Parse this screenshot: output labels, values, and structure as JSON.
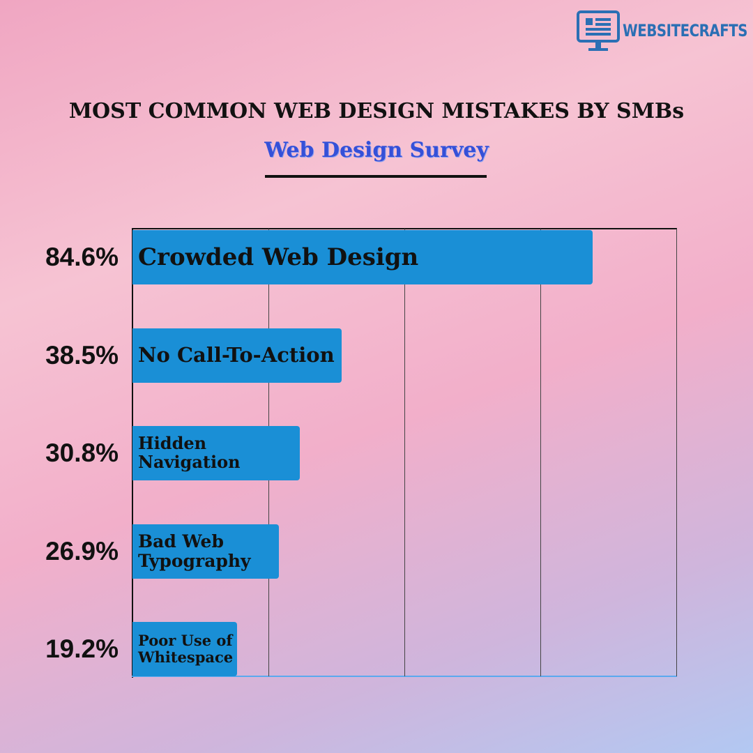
{
  "logo": "WEBSITECRAFTS",
  "chart_data": {
    "type": "bar",
    "orientation": "horizontal",
    "title": "MOST COMMON WEB DESIGN MISTAKES BY SMBs",
    "subtitle": "Web Design Survey",
    "categories": [
      "Crowded Web Design",
      "No Call-To-Action",
      "Hidden Navigation",
      "Bad Web Typography",
      "Poor Use of Whitespace"
    ],
    "values": [
      84.6,
      38.5,
      30.8,
      26.9,
      19.2
    ],
    "value_labels": [
      "84.6%",
      "38.5%",
      "30.8%",
      "26.9%",
      "19.2%"
    ],
    "color": "#1a8fd6",
    "xlim": [
      0,
      100
    ],
    "xticks": [
      0,
      25,
      50,
      75,
      100
    ],
    "grid": true
  }
}
